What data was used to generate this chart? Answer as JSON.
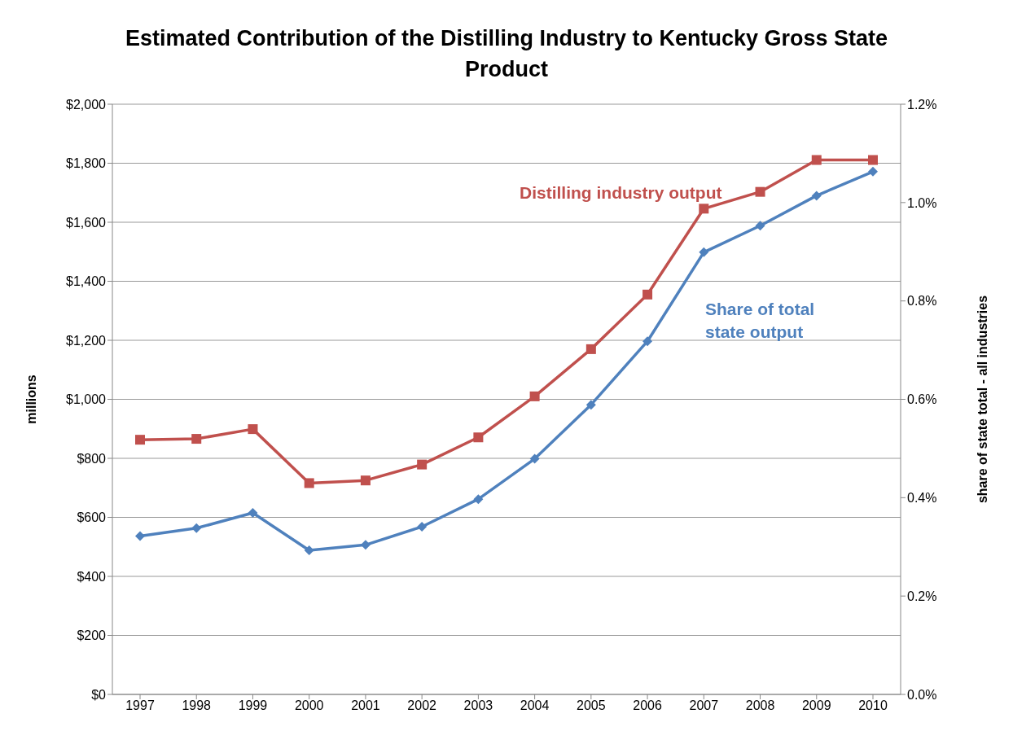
{
  "chart_data": {
    "type": "line",
    "title": "Estimated Contribution of the Distilling Industry to Kentucky Gross State Product",
    "ylabel": "millions",
    "y2label": "share of state total - all industries",
    "categories": [
      "1997",
      "1998",
      "1999",
      "2000",
      "2001",
      "2002",
      "2003",
      "2004",
      "2005",
      "2006",
      "2007",
      "2008",
      "2009",
      "2010"
    ],
    "series": [
      {
        "name": "Distilling industry output",
        "color": "#c0504d",
        "marker": "square",
        "values": [
          863,
          866,
          899,
          716,
          725,
          779,
          871,
          1010,
          1170,
          1355,
          1646,
          1703,
          1811,
          1811
        ]
      },
      {
        "name": "Share of total state output",
        "color": "#4f81bd",
        "marker": "diamond",
        "axis": "y2",
        "values": [
          0.322,
          0.338,
          0.369,
          0.293,
          0.304,
          0.341,
          0.397,
          0.479,
          0.589,
          0.718,
          0.899,
          0.953,
          1.014,
          1.063
        ]
      }
    ],
    "ylim": [
      0,
      2000
    ],
    "yticks": [
      {
        "value": 0,
        "label": "$0"
      },
      {
        "value": 200,
        "label": "$200"
      },
      {
        "value": 400,
        "label": "$400"
      },
      {
        "value": 600,
        "label": "$600"
      },
      {
        "value": 800,
        "label": "$800"
      },
      {
        "value": 1000,
        "label": "$1,000"
      },
      {
        "value": 1200,
        "label": "$1,200"
      },
      {
        "value": 1400,
        "label": "$1,400"
      },
      {
        "value": 1600,
        "label": "$1,600"
      },
      {
        "value": 1800,
        "label": "$1,800"
      },
      {
        "value": 2000,
        "label": "$2,000"
      }
    ],
    "y2lim": [
      0,
      1.2
    ],
    "y2ticks": [
      {
        "value": 0,
        "label": "0.0%"
      },
      {
        "value": 0.2,
        "label": "0.2%"
      },
      {
        "value": 0.4,
        "label": "0.4%"
      },
      {
        "value": 0.6,
        "label": "0.6%"
      },
      {
        "value": 0.8,
        "label": "0.8%"
      },
      {
        "value": 1.0,
        "label": "1.0%"
      },
      {
        "value": 1.2,
        "label": "1.2%"
      }
    ],
    "grid": "y",
    "line_style": "solid"
  }
}
